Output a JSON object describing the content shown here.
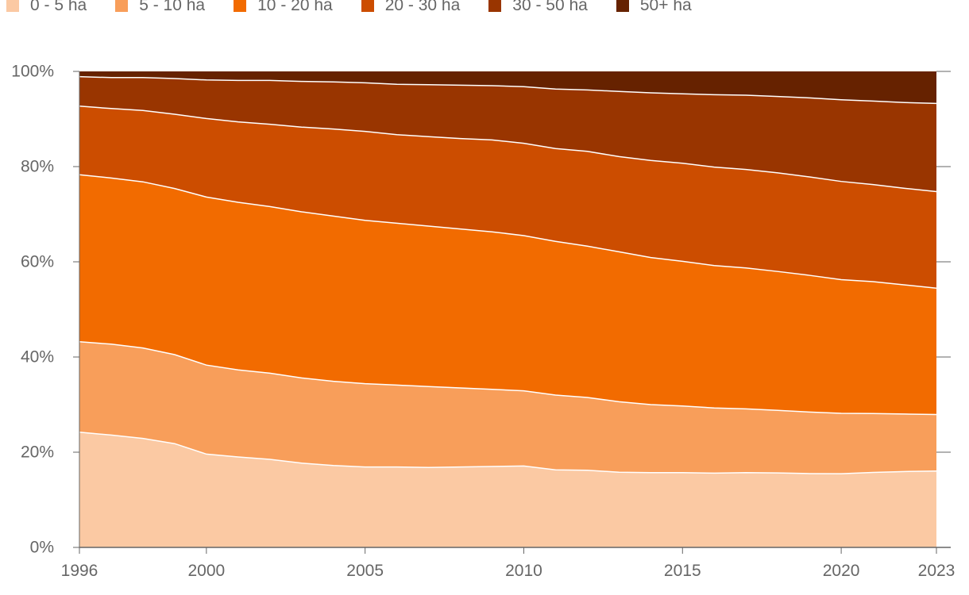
{
  "chart_data": {
    "type": "area",
    "stacked": true,
    "normalized": true,
    "title": "",
    "xlabel": "",
    "ylabel": "",
    "x": [
      1996,
      1997,
      1998,
      1999,
      2000,
      2001,
      2002,
      2003,
      2004,
      2005,
      2006,
      2007,
      2008,
      2009,
      2010,
      2011,
      2012,
      2013,
      2014,
      2015,
      2016,
      2017,
      2018,
      2019,
      2020,
      2021,
      2022,
      2023
    ],
    "xticks": [
      "1996",
      "2000",
      "2005",
      "2010",
      "2015",
      "2020",
      "2023"
    ],
    "yticks": [
      "0%",
      "20%",
      "40%",
      "60%",
      "80%",
      "100%"
    ],
    "ylim": [
      0,
      100
    ],
    "legend_position": "top-left",
    "series": [
      {
        "name": "0 - 5 ha",
        "color": "#fbc9a3",
        "values": [
          24.2,
          23.6,
          22.9,
          21.8,
          19.6,
          19.0,
          18.5,
          17.7,
          17.2,
          16.9,
          16.9,
          16.8,
          16.9,
          17.0,
          17.1,
          16.3,
          16.2,
          15.8,
          15.7,
          15.7,
          15.6,
          15.7,
          15.7,
          15.6,
          15.6,
          15.9,
          16.1,
          16.2
        ]
      },
      {
        "name": "5 - 10 ha",
        "color": "#f89e5a",
        "values": [
          19.0,
          19.1,
          19.0,
          18.7,
          18.7,
          18.3,
          18.1,
          17.9,
          17.7,
          17.5,
          17.2,
          17.0,
          16.6,
          16.2,
          15.8,
          15.7,
          15.3,
          14.8,
          14.3,
          14.0,
          13.7,
          13.4,
          13.2,
          13.0,
          12.8,
          12.5,
          12.2,
          12.0
        ]
      },
      {
        "name": "10 - 20 ha",
        "color": "#f26b00",
        "values": [
          35.1,
          34.9,
          34.9,
          34.9,
          35.3,
          35.2,
          35.0,
          34.9,
          34.7,
          34.3,
          34.0,
          33.7,
          33.4,
          33.1,
          32.6,
          32.3,
          31.8,
          31.5,
          30.9,
          30.4,
          29.9,
          29.6,
          29.3,
          28.9,
          28.3,
          28.0,
          27.4,
          26.8
        ]
      },
      {
        "name": "20 - 30 ha",
        "color": "#cc4d00",
        "values": [
          14.4,
          14.6,
          15.0,
          15.6,
          16.5,
          16.9,
          17.3,
          17.8,
          18.3,
          18.7,
          18.6,
          18.8,
          19.0,
          19.3,
          19.4,
          19.5,
          19.9,
          20.0,
          20.4,
          20.6,
          20.7,
          20.7,
          20.8,
          20.8,
          20.8,
          20.6,
          20.5,
          20.5
        ]
      },
      {
        "name": "30 - 50 ha",
        "color": "#993500",
        "values": [
          6.2,
          6.5,
          6.9,
          7.5,
          8.1,
          8.7,
          9.2,
          9.6,
          9.9,
          10.2,
          10.6,
          10.9,
          11.2,
          11.4,
          11.9,
          12.5,
          12.9,
          13.7,
          14.2,
          14.6,
          15.2,
          15.6,
          16.1,
          16.7,
          17.3,
          17.7,
          18.2,
          18.7
        ]
      },
      {
        "name": "50+ ha",
        "color": "#662200",
        "values": [
          1.1,
          1.3,
          1.3,
          1.5,
          1.8,
          1.9,
          1.9,
          2.1,
          2.2,
          2.4,
          2.7,
          2.8,
          2.9,
          3.0,
          3.2,
          3.7,
          3.9,
          4.2,
          4.5,
          4.7,
          4.9,
          5.0,
          5.3,
          5.6,
          6.0,
          6.3,
          6.6,
          6.8
        ]
      }
    ]
  }
}
